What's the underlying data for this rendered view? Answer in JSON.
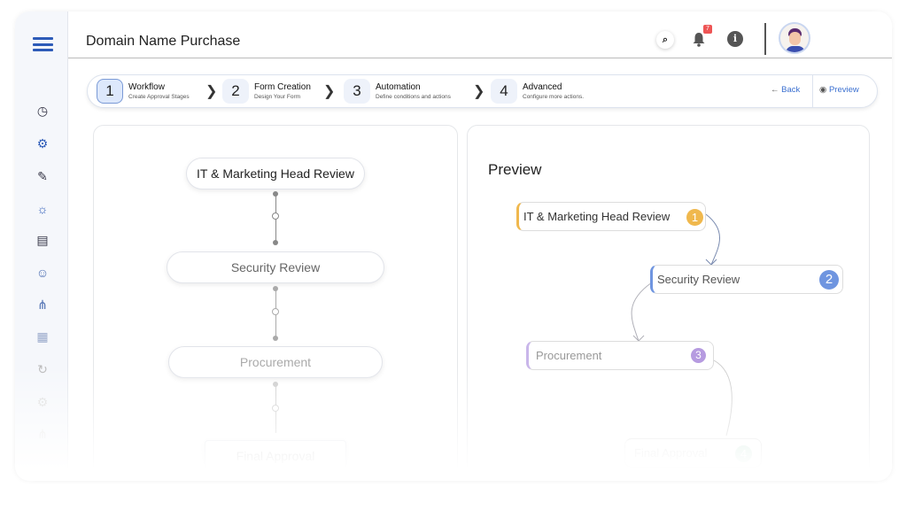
{
  "header": {
    "title": "Domain Name Purchase",
    "notification_count": "7"
  },
  "sidebar": {
    "icons": [
      "dashboard-icon",
      "workflow-icon",
      "form-edit-icon",
      "automation-icon",
      "records-icon",
      "user-settings-icon",
      "hierarchy-icon",
      "modules-icon",
      "history-icon",
      "settings-icon",
      "org-chart-icon"
    ]
  },
  "stepper": {
    "steps": [
      {
        "num": "1",
        "title": "Workflow",
        "subtitle": "Create Approval Stages"
      },
      {
        "num": "2",
        "title": "Form Creation",
        "subtitle": "Design Your Form"
      },
      {
        "num": "3",
        "title": "Automation",
        "subtitle": "Define conditions and actions"
      },
      {
        "num": "4",
        "title": "Advanced",
        "subtitle": "Configure more actions."
      }
    ],
    "back_label": "Back",
    "preview_label": "Preview"
  },
  "workflow": {
    "stages": [
      "IT & Marketing Head Review",
      "Security Review",
      "Procurement",
      "Final Approval"
    ]
  },
  "preview": {
    "title": "Preview",
    "nodes": [
      {
        "label": "IT & Marketing Head Review",
        "badge": "1",
        "color": "#f0b84d"
      },
      {
        "label": "Security Review",
        "badge": "2",
        "color": "#6f95e0"
      },
      {
        "label": "Procurement",
        "badge": "3",
        "color": "#b69be0"
      },
      {
        "label": "Final Approval",
        "badge": "4",
        "color": "#7cc7a0"
      }
    ]
  }
}
